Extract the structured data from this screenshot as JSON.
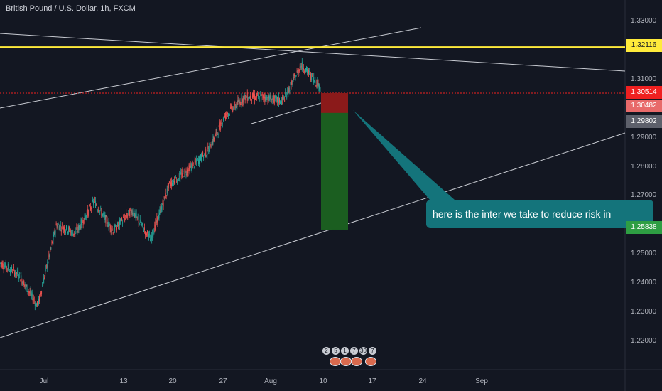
{
  "title": "British Pound / U.S. Dollar, 1h, FXCM",
  "annotation": "here is the inter we take to reduce  risk in",
  "event_markers": [
    "2",
    "5",
    "1",
    "7",
    "30",
    "7"
  ],
  "colors": {
    "background": "#131722",
    "up_candle": "#26a69a",
    "down_candle": "#ef5350",
    "horizontal_line": "#ffeb3b",
    "trend_lines": "#d1d4dc",
    "stop_zone": "#8b1a1a",
    "target_zone": "#1b5e20",
    "annotation_bg": "#14747b"
  },
  "chart_data": {
    "type": "candlestick",
    "title": "British Pound / U.S. Dollar, 1h, FXCM",
    "y_ticks": [
      "1.33000",
      "1.31000",
      "1.29000",
      "1.28000",
      "1.27000",
      "1.25000",
      "1.24000",
      "1.23000",
      "1.22000"
    ],
    "x_ticks": [
      "Jul",
      "13",
      "20",
      "27",
      "Aug",
      "10",
      "17",
      "24",
      "Sep"
    ],
    "ylim": [
      1.215,
      1.335
    ],
    "price_labels": [
      {
        "value": "1.32116",
        "bg": "#ffeb3b",
        "fg": "#131722"
      },
      {
        "value": "1.30514",
        "bg": "#ef2020",
        "fg": "#ffffff"
      },
      {
        "value": "1.30482",
        "bg": "#e86a6a",
        "fg": "#ffffff"
      },
      {
        "value": "1.29802",
        "bg": "#5d606b",
        "fg": "#ffffff"
      },
      {
        "value": "1.25838",
        "bg": "#2e9e43",
        "fg": "#ffffff"
      }
    ],
    "horizontal_line": 1.32116,
    "position": {
      "entry": 1.29802,
      "stop": 1.30482,
      "target": 1.25838
    },
    "price_path_anchors": [
      [
        1.248,
        1.246
      ],
      [
        1.242,
        1.244
      ],
      [
        1.236,
        1.228
      ],
      [
        1.258,
        1.262
      ],
      [
        1.252,
        1.262
      ],
      [
        1.266,
        1.27
      ],
      [
        1.26,
        1.256
      ],
      [
        1.266,
        1.264
      ],
      [
        1.252,
        1.258
      ],
      [
        1.27,
        1.278
      ],
      [
        1.274,
        1.284
      ],
      [
        1.28,
        1.29
      ],
      [
        1.294,
        1.302
      ],
      [
        1.296,
        1.312
      ],
      [
        1.306,
        1.302
      ],
      [
        1.305,
        1.3
      ],
      [
        1.312,
        1.318
      ],
      [
        1.31,
        1.305
      ]
    ]
  }
}
